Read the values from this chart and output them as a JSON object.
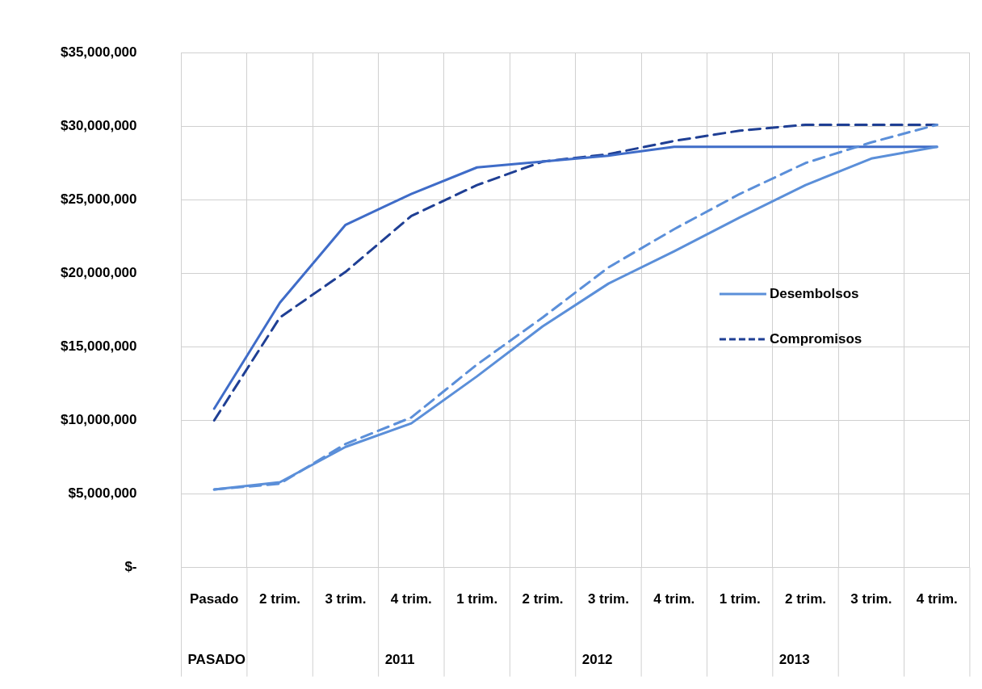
{
  "chart_data": {
    "type": "line",
    "categories": [
      "Pasado",
      "2 trim.",
      "3 trim.",
      "4 trim.",
      "1 trim.",
      "2 trim.",
      "3 trim.",
      "4 trim.",
      "1 trim.",
      "2 trim.",
      "3 trim.",
      "4 trim."
    ],
    "series": [
      {
        "name": "Desembolsos",
        "color": "#5b8fd9",
        "values": [
          5300000.0,
          5800000.0,
          8200000.0,
          9800000.0,
          13000000.0,
          16400000.0,
          19300000.0,
          21500000.0,
          23800000.0,
          26000000.0,
          27800000.0,
          28600000.0
        ]
      },
      {
        "color": "#5b8fd9",
        "line_style": "dashed",
        "values": [
          5300000.0,
          5700000.0,
          8400000.0,
          10200000.0,
          13800000.0,
          17000000.0,
          20400000.0,
          23000000.0,
          25400000.0,
          27500000.0,
          28900000.0,
          30100000.0
        ]
      },
      {
        "color": "#3f6cc8",
        "values": [
          10800000.0,
          18000000.0,
          23300000.0,
          25400000.0,
          27200000.0,
          27600000.0,
          28000000.0,
          28600000.0,
          28600000.0,
          28600000.0,
          28600000.0,
          28600000.0
        ]
      },
      {
        "name": "Compromisos",
        "color": "#1f3f94",
        "line_style": "dashed",
        "values": [
          10000000.0,
          17000000.0,
          20100000.0,
          23900000.0,
          26000000.0,
          27600000.0,
          28100000.0,
          29000000.0,
          29700000.0,
          30100000.0,
          30100000.0,
          30100000.0
        ]
      }
    ],
    "ylim": [
      0,
      35000000
    ],
    "yticks": [
      {
        "value": 0,
        "label": "$-"
      },
      {
        "value": 5000000,
        "label": "$5,000,000"
      },
      {
        "value": 10000000,
        "label": "$10,000,000"
      },
      {
        "value": 15000000,
        "label": "$15,000,000"
      },
      {
        "value": 20000000,
        "label": "$20,000,000"
      },
      {
        "value": 25000000,
        "label": "$25,000,000"
      },
      {
        "value": 30000000,
        "label": "$30,000,000"
      },
      {
        "value": 35000000,
        "label": "$35,000,000"
      }
    ],
    "annotations": [
      "PASADO",
      "2011",
      "2012",
      "2013"
    ],
    "grid": true,
    "legend": "right",
    "marker": "none"
  }
}
